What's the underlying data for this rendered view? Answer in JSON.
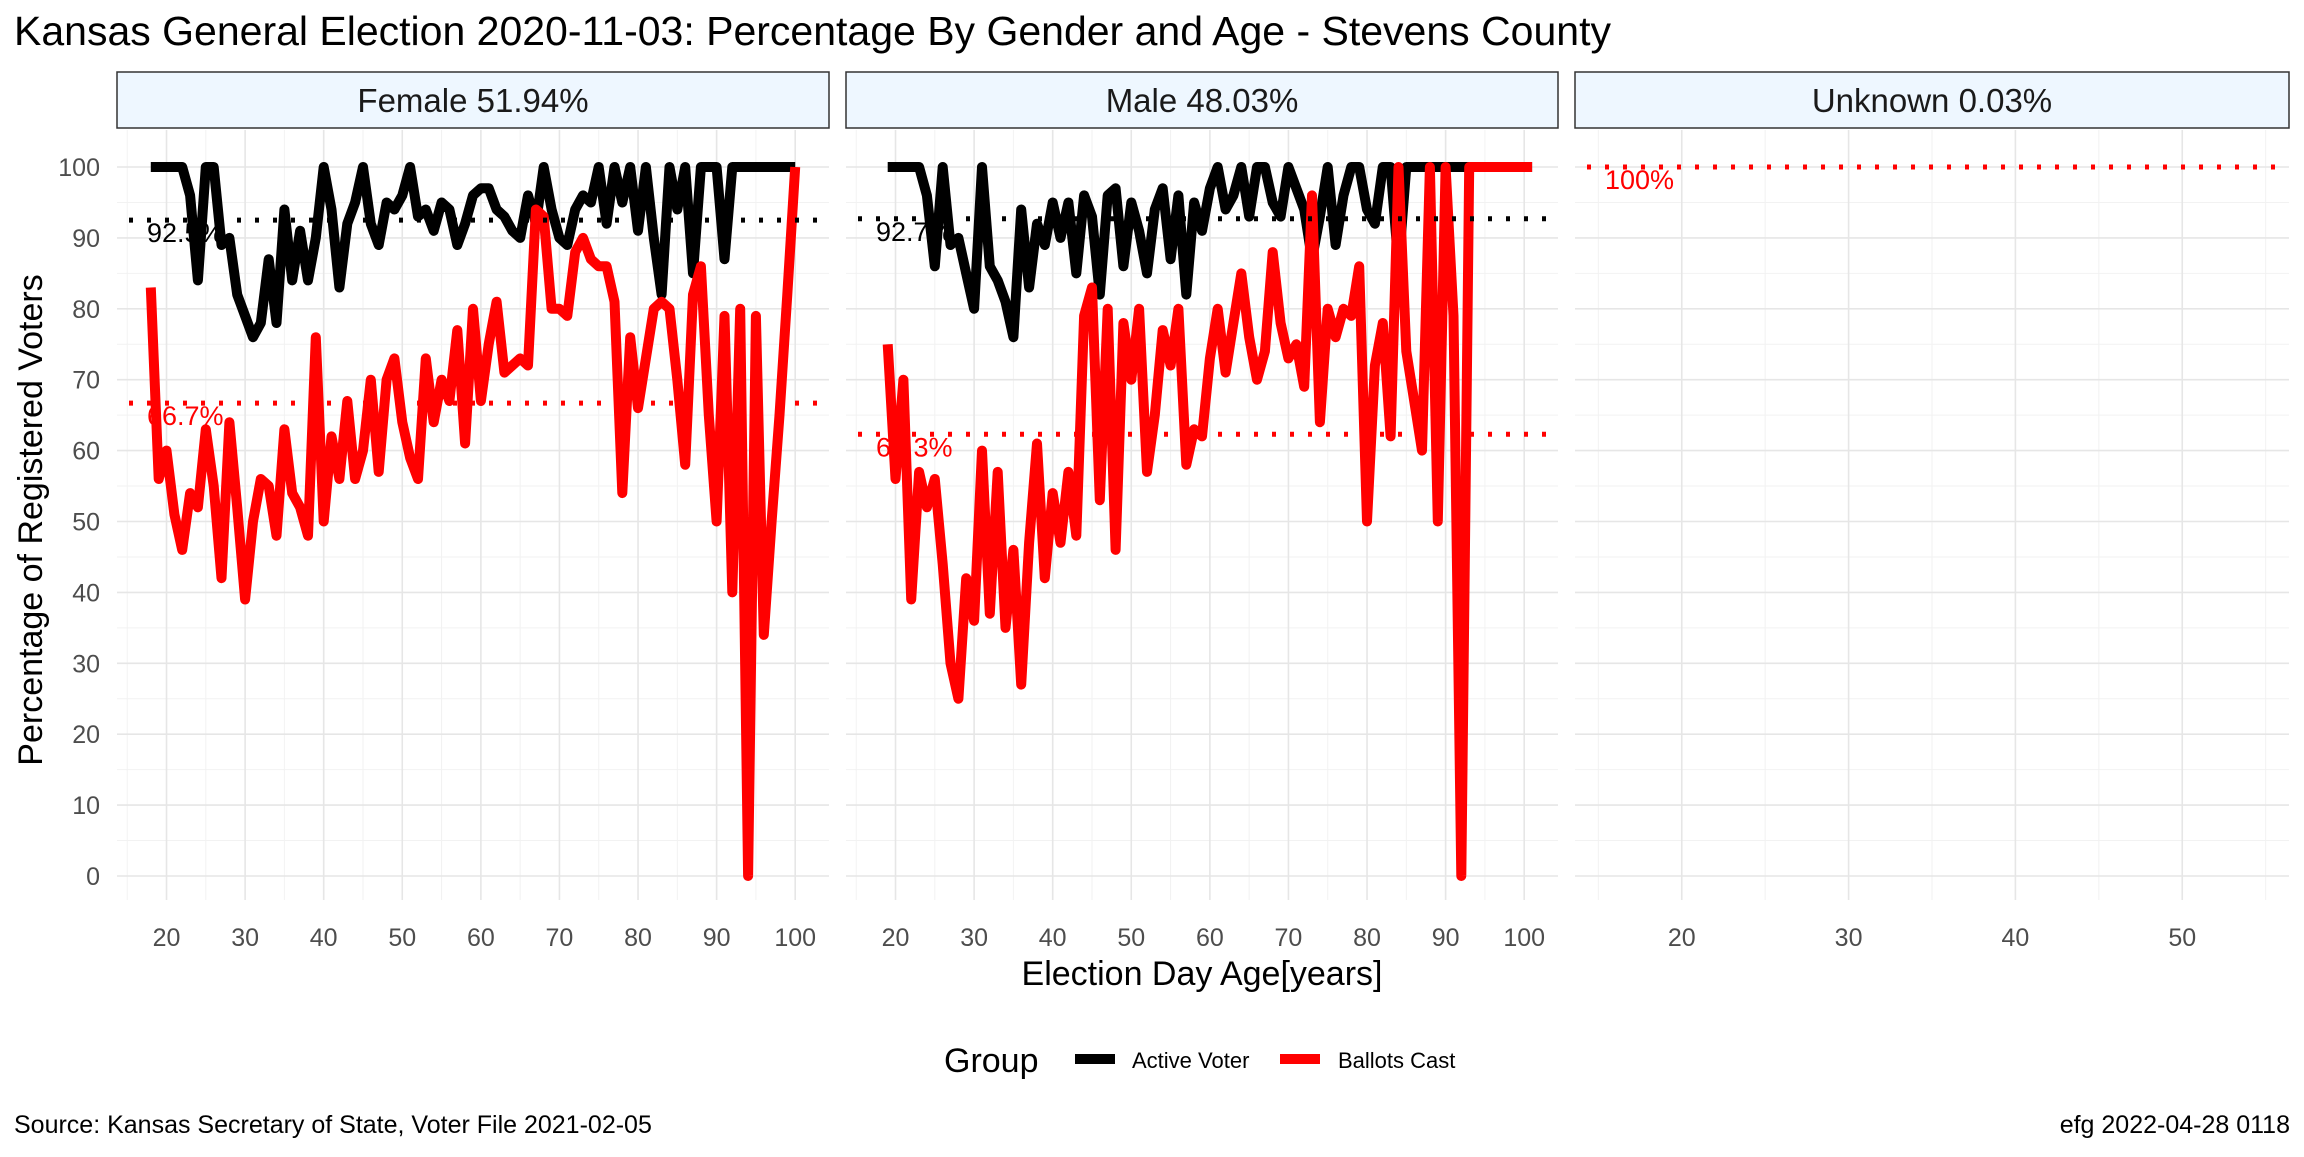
{
  "chart_data": {
    "type": "line",
    "title": "Kansas General Election 2020-11-03:  Percentage By Gender and Age - Stevens County",
    "xlabel": "Election Day Age[years]",
    "ylabel": "Percentage of Registered Voters",
    "ylim": [
      0,
      100
    ],
    "y_ticks": [
      0,
      10,
      20,
      30,
      40,
      50,
      60,
      70,
      80,
      90,
      100
    ],
    "legend": {
      "title": "Group",
      "placement": "bottom",
      "entries": [
        {
          "label": "Active Voter",
          "color": "#000000"
        },
        {
          "label": "Ballots Cast",
          "color": "#ff0000"
        }
      ]
    },
    "source": "Source:  Kansas Secretary of State, Voter File  2021-02-05",
    "credit": "efg 2022-04-28 0118",
    "colors": {
      "strip_fill": "#eef7ff",
      "grid": "#e6e6e6",
      "active": "#000000",
      "ballots": "#ff0000"
    },
    "panels": [
      {
        "strip": "Female 51.94%",
        "xlim": [
          13.7,
          104.3
        ],
        "x_ticks": [
          20,
          30,
          40,
          50,
          60,
          70,
          80,
          90,
          100
        ],
        "active_avg": 92.5,
        "active_avg_label": "92.5%",
        "ballots_avg": 66.7,
        "ballots_avg_label": "66.7%",
        "series": [
          {
            "name": "Active Voter",
            "x": [
              18,
              19,
              20,
              21,
              22,
              23,
              24,
              25,
              26,
              27,
              28,
              29,
              30,
              31,
              32,
              33,
              34,
              35,
              36,
              37,
              38,
              39,
              40,
              41,
              42,
              43,
              44,
              45,
              46,
              47,
              48,
              49,
              50,
              51,
              52,
              53,
              54,
              55,
              56,
              57,
              58,
              59,
              60,
              61,
              62,
              63,
              64,
              65,
              66,
              67,
              68,
              69,
              70,
              71,
              72,
              73,
              74,
              75,
              76,
              77,
              78,
              79,
              80,
              81,
              82,
              83,
              84,
              85,
              86,
              87,
              88,
              89,
              90,
              91,
              92,
              93,
              94,
              95,
              96,
              97,
              98,
              99,
              100
            ],
            "values": [
              100,
              100,
              100,
              100,
              100,
              96,
              84,
              100,
              100,
              89,
              90,
              82,
              79,
              76,
              78,
              87,
              78,
              94,
              84,
              91,
              84,
              90,
              100,
              94,
              83,
              92,
              95,
              100,
              92,
              89,
              95,
              94,
              96,
              100,
              93,
              94,
              91,
              95,
              94,
              89,
              92,
              96,
              97,
              97,
              94,
              93,
              91,
              90,
              96,
              92,
              100,
              94,
              90,
              89,
              94,
              96,
              95,
              100,
              92,
              100,
              95,
              100,
              91,
              100,
              90,
              82,
              100,
              94,
              100,
              85,
              100,
              100,
              100,
              87,
              100,
              100,
              100,
              100,
              100,
              100,
              100,
              100,
              100
            ]
          },
          {
            "name": "Ballots Cast",
            "x": [
              18,
              19,
              20,
              21,
              22,
              23,
              24,
              25,
              26,
              27,
              28,
              29,
              30,
              31,
              32,
              33,
              34,
              35,
              36,
              37,
              38,
              39,
              40,
              41,
              42,
              43,
              44,
              45,
              46,
              47,
              48,
              49,
              50,
              51,
              52,
              53,
              54,
              55,
              56,
              57,
              58,
              59,
              60,
              61,
              62,
              63,
              64,
              65,
              66,
              67,
              68,
              69,
              70,
              71,
              72,
              73,
              74,
              75,
              76,
              77,
              78,
              79,
              80,
              81,
              82,
              83,
              84,
              85,
              86,
              87,
              88,
              89,
              90,
              91,
              92,
              93,
              94,
              95,
              96,
              97,
              98,
              99,
              100
            ],
            "values": [
              83,
              56,
              60,
              51,
              46,
              54,
              52,
              63,
              55,
              42,
              64,
              52,
              39,
              50,
              56,
              55,
              48,
              63,
              54,
              52,
              48,
              76,
              50,
              62,
              56,
              67,
              56,
              60,
              70,
              57,
              70,
              73,
              64,
              59,
              56,
              73,
              64,
              70,
              67,
              77,
              61,
              80,
              67,
              75,
              81,
              71,
              72,
              73,
              72,
              94,
              93,
              80,
              80,
              79,
              88,
              90,
              87,
              86,
              86,
              81,
              54,
              76,
              66,
              73,
              80,
              81,
              80,
              70,
              58,
              82,
              86,
              65,
              50,
              79,
              40,
              80,
              0,
              79,
              34,
              50,
              65,
              82,
              100
            ]
          }
        ]
      },
      {
        "strip": "Male 48.03%",
        "xlim": [
          13.7,
          104.3
        ],
        "x_ticks": [
          20,
          30,
          40,
          50,
          60,
          70,
          80,
          90,
          100
        ],
        "active_avg": 92.7,
        "active_avg_label": "92.7%",
        "ballots_avg": 62.3,
        "ballots_avg_label": "62.3%",
        "series": [
          {
            "name": "Active Voter",
            "x": [
              19,
              20,
              21,
              22,
              23,
              24,
              25,
              26,
              27,
              28,
              29,
              30,
              31,
              32,
              33,
              34,
              35,
              36,
              37,
              38,
              39,
              40,
              41,
              42,
              43,
              44,
              45,
              46,
              47,
              48,
              49,
              50,
              51,
              52,
              53,
              54,
              55,
              56,
              57,
              58,
              59,
              60,
              61,
              62,
              63,
              64,
              65,
              66,
              67,
              68,
              69,
              70,
              71,
              72,
              73,
              74,
              75,
              76,
              77,
              78,
              79,
              80,
              81,
              82,
              83,
              84,
              85,
              86,
              87,
              88,
              89,
              90,
              91,
              92,
              93,
              94,
              95,
              96,
              97,
              98,
              99,
              100,
              101
            ],
            "values": [
              100,
              100,
              100,
              100,
              100,
              96,
              86,
              100,
              89,
              90,
              85,
              80,
              100,
              86,
              84,
              81,
              76,
              94,
              83,
              92,
              89,
              95,
              90,
              95,
              85,
              96,
              93,
              82,
              96,
              97,
              86,
              95,
              91,
              85,
              94,
              97,
              87,
              96,
              82,
              95,
              91,
              97,
              100,
              94,
              96,
              100,
              93,
              100,
              100,
              95,
              93,
              100,
              97,
              94,
              87,
              93,
              100,
              89,
              96,
              100,
              100,
              94,
              92,
              100,
              100,
              86,
              100,
              100,
              100,
              100,
              100,
              100,
              100,
              100,
              100,
              100,
              100,
              100,
              100,
              100,
              100,
              100,
              100
            ]
          },
          {
            "name": "Ballots Cast",
            "x": [
              19,
              20,
              21,
              22,
              23,
              24,
              25,
              26,
              27,
              28,
              29,
              30,
              31,
              32,
              33,
              34,
              35,
              36,
              37,
              38,
              39,
              40,
              41,
              42,
              43,
              44,
              45,
              46,
              47,
              48,
              49,
              50,
              51,
              52,
              53,
              54,
              55,
              56,
              57,
              58,
              59,
              60,
              61,
              62,
              63,
              64,
              65,
              66,
              67,
              68,
              69,
              70,
              71,
              72,
              73,
              74,
              75,
              76,
              77,
              78,
              79,
              80,
              81,
              82,
              83,
              84,
              85,
              86,
              87,
              88,
              89,
              90,
              91,
              92,
              93,
              94,
              95,
              96,
              97,
              98,
              99,
              100,
              101
            ],
            "values": [
              75,
              56,
              70,
              39,
              57,
              52,
              56,
              44,
              30,
              25,
              42,
              36,
              60,
              37,
              57,
              35,
              46,
              27,
              47,
              61,
              42,
              54,
              47,
              57,
              48,
              79,
              83,
              53,
              80,
              46,
              78,
              70,
              80,
              57,
              65,
              77,
              72,
              80,
              58,
              63,
              62,
              73,
              80,
              71,
              78,
              85,
              76,
              70,
              74,
              88,
              78,
              73,
              75,
              69,
              96,
              64,
              80,
              76,
              80,
              79,
              86,
              50,
              72,
              78,
              62,
              100,
              74,
              67,
              60,
              100,
              50,
              100,
              79,
              0,
              100,
              100,
              100,
              100,
              100,
              100,
              100,
              100,
              100
            ]
          }
        ]
      },
      {
        "strip": "Unknown 0.03%",
        "xlim": [
          13.6,
          56.4
        ],
        "x_ticks": [
          20,
          30,
          40,
          50
        ],
        "active_avg": 100,
        "active_avg_label": "",
        "ballots_avg": 100,
        "ballots_avg_label": "100%",
        "series": []
      }
    ]
  }
}
